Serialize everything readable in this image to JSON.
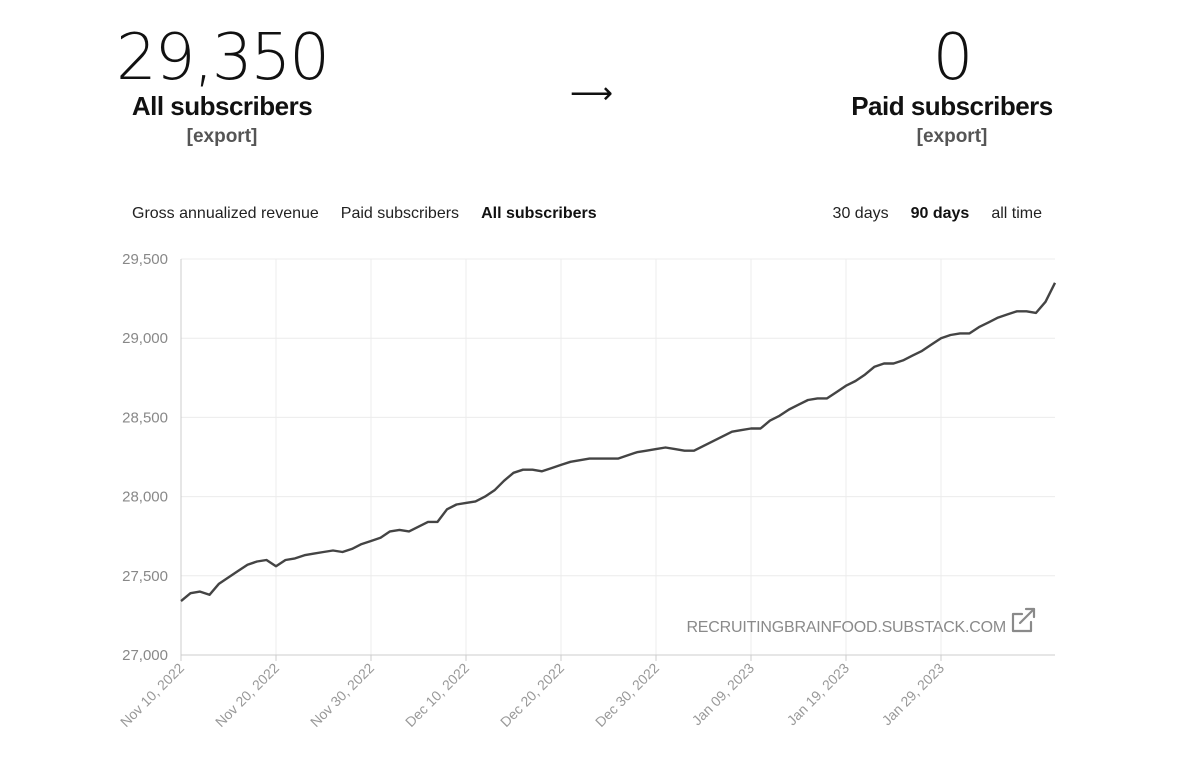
{
  "stats": {
    "all": {
      "value": "29,350",
      "label": "All subscribers",
      "export": "[export]"
    },
    "arrow": "⟶",
    "paid": {
      "value": "0",
      "label": "Paid subscribers",
      "export": "[export]"
    }
  },
  "tabs": [
    {
      "label": "Gross annualized revenue",
      "active": false
    },
    {
      "label": "Paid subscribers",
      "active": false
    },
    {
      "label": "All subscribers",
      "active": true
    }
  ],
  "ranges": [
    {
      "label": "30 days",
      "active": false
    },
    {
      "label": "90 days",
      "active": true
    },
    {
      "label": "all time",
      "active": false
    }
  ],
  "watermark": "RECRUITINGBRAINFOOD.SUBSTACK.COM",
  "chart_data": {
    "type": "line",
    "start_date": "2022-11-10",
    "ylim": [
      27000,
      29500
    ],
    "yticks": [
      "27,000",
      "27,500",
      "28,000",
      "28,500",
      "29,000",
      "29,500"
    ],
    "xticks": [
      "Nov 10, 2022",
      "Nov 20, 2022",
      "Nov 30, 2022",
      "Dec 10, 2022",
      "Dec 20, 2022",
      "Dec 30, 2022",
      "Jan 09, 2023",
      "Jan 19, 2023",
      "Jan 29, 2023"
    ],
    "grid": true,
    "line_color": "#444444",
    "series": [
      {
        "values": [
          27340,
          27390,
          27400,
          27380,
          27450,
          27490,
          27530,
          27570,
          27590,
          27600,
          27560,
          27600,
          27610,
          27630,
          27640,
          27650,
          27660,
          27650,
          27670,
          27700,
          27720,
          27740,
          27780,
          27790,
          27780,
          27810,
          27840,
          27840,
          27920,
          27950,
          27960,
          27970,
          28000,
          28040,
          28100,
          28150,
          28170,
          28170,
          28160,
          28180,
          28200,
          28220,
          28230,
          28240,
          28240,
          28240,
          28240,
          28260,
          28280,
          28290,
          28300,
          28310,
          28300,
          28290,
          28290,
          28320,
          28350,
          28380,
          28410,
          28420,
          28430,
          28430,
          28480,
          28510,
          28550,
          28580,
          28610,
          28620,
          28620,
          28660,
          28700,
          28730,
          28770,
          28820,
          28840,
          28840,
          28860,
          28890,
          28920,
          28960,
          29000,
          29020,
          29030,
          29030,
          29070,
          29100,
          29130,
          29150,
          29170,
          29170,
          29160,
          29230,
          29350
        ]
      }
    ]
  }
}
